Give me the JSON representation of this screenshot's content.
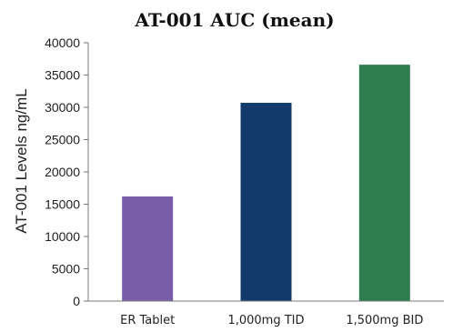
{
  "chart_data": {
    "type": "bar",
    "title": "AT-001 AUC (mean)",
    "ylabel": "AT-001 Levels ng/mL",
    "xlabel": "",
    "categories": [
      "ER Tablet",
      "1,000mg TID",
      "1,500mg BID"
    ],
    "values": [
      16200,
      30700,
      36600
    ],
    "colors": [
      "#7a5da8",
      "#123a6a",
      "#2e7d4f"
    ],
    "ylim": [
      0,
      40000
    ],
    "yticks": [
      "0",
      "5000",
      "10000",
      "15000",
      "20000",
      "25000",
      "30000",
      "35000",
      "40000"
    ],
    "grid": false,
    "legend": "none"
  }
}
